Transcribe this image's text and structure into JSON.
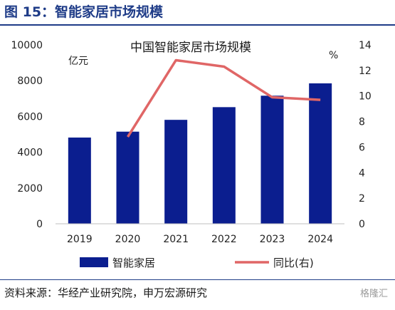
{
  "figure_label": "图 15：智能家居市场规模",
  "source_text": "资料来源：华经产业研究院，申万宏源研究",
  "watermark": "格隆汇",
  "colors": {
    "bar": "#0b1e8f",
    "line": "#e06666",
    "header": "#1f3c88"
  },
  "chart_data": {
    "type": "bar",
    "title": "中国智能家居市场规模",
    "categories": [
      "2019",
      "2020",
      "2021",
      "2022",
      "2023",
      "2024"
    ],
    "y_left": {
      "unit": "亿元",
      "ylim": [
        0,
        10000
      ],
      "ticks": [
        "0",
        "2000",
        "4000",
        "6000",
        "8000",
        "10000"
      ]
    },
    "y_right": {
      "unit": "%",
      "ylim": [
        0,
        14
      ],
      "ticks": [
        "0",
        "2",
        "4",
        "6",
        "8",
        "10",
        "12",
        "14"
      ]
    },
    "series": [
      {
        "name": "智能家居",
        "type": "bar",
        "axis": "left",
        "values": [
          4820,
          5150,
          5810,
          6520,
          7160,
          7850
        ]
      },
      {
        "name": "同比(右)",
        "type": "line",
        "axis": "right",
        "values": [
          null,
          6.8,
          12.8,
          12.3,
          9.9,
          9.7
        ]
      }
    ],
    "legend_position": "bottom",
    "grid": false
  }
}
